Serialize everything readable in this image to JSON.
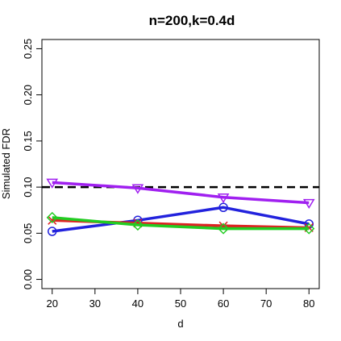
{
  "chart_data": {
    "type": "line",
    "title": "n=200,k=0.4d",
    "xlabel": "d",
    "ylabel": "Simulated FDR",
    "x": [
      20,
      40,
      60,
      80
    ],
    "xticks": [
      20,
      30,
      40,
      50,
      60,
      70,
      80
    ],
    "xtick_labels": [
      "20",
      "30",
      "40",
      "50",
      "60",
      "70",
      "80"
    ],
    "xlim": [
      17.6,
      82.4
    ],
    "yticks": [
      0.0,
      0.05,
      0.1,
      0.15,
      0.2,
      0.25
    ],
    "ytick_labels": [
      "0.00",
      "0.05",
      "0.10",
      "0.15",
      "0.20",
      "0.25"
    ],
    "ylim": [
      -0.01,
      0.26
    ],
    "reference_line": {
      "y": 0.1,
      "style": "dashed",
      "color": "#000000"
    },
    "grid": false,
    "series": [
      {
        "color": "#2222dd",
        "marker": "circle",
        "values": [
          0.052,
          0.064,
          0.078,
          0.06
        ]
      },
      {
        "color": "#dd2222",
        "marker": "x",
        "values": [
          0.064,
          0.061,
          0.058,
          0.056
        ]
      },
      {
        "color": "#22cc22",
        "marker": "diamond",
        "values": [
          0.067,
          0.059,
          0.055,
          0.055
        ]
      },
      {
        "color": "#a020f0",
        "marker": "triangle-down",
        "values": [
          0.105,
          0.099,
          0.089,
          0.083
        ]
      }
    ]
  }
}
